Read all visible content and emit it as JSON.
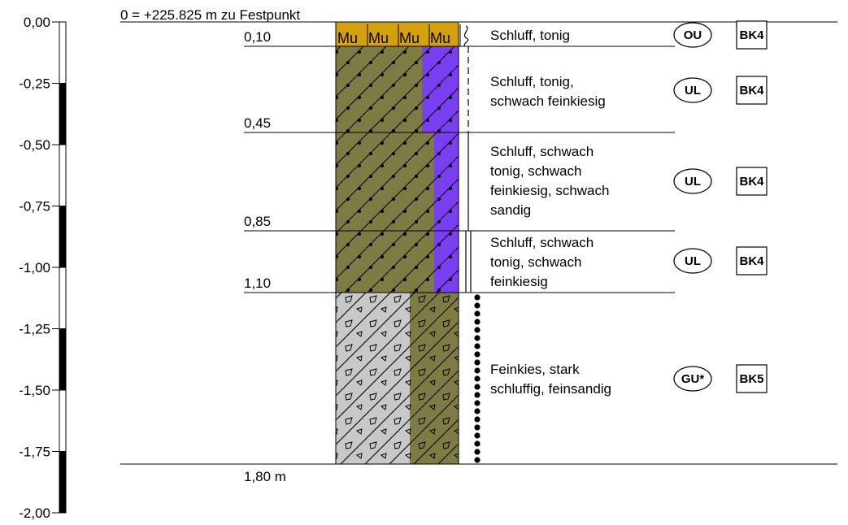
{
  "reference": "0 = +225.825 m zu Festpunkt",
  "scale_ticks": [
    "0,00",
    "-0,25",
    "-0,50",
    "-0,75",
    "-1,00",
    "-1,25",
    "-1,50",
    "-1,75",
    "-2,00"
  ],
  "depth_labels": [
    "0,10",
    "0,45",
    "0,85",
    "1,10"
  ],
  "final_depth": "1,80 m",
  "layers": [
    {
      "lines": [
        "Schluff, tonig"
      ],
      "group": "OU",
      "class": "BK4",
      "bottom": 0.1
    },
    {
      "lines": [
        "Schluff, tonig,",
        "schwach feinkiesig"
      ],
      "group": "UL",
      "class": "BK4",
      "bottom": 0.45
    },
    {
      "lines": [
        "Schluff, schwach",
        "tonig, schwach",
        "feinkiesig, schwach",
        "sandig"
      ],
      "group": "UL",
      "class": "BK4",
      "bottom": 0.85
    },
    {
      "lines": [
        "Schluff, schwach",
        "tonig, schwach",
        "feinkiesig"
      ],
      "group": "UL",
      "class": "BK4",
      "bottom": 1.1
    },
    {
      "lines": [
        "Feinkies, stark",
        "schluffig, feinsandig"
      ],
      "group": "GU*",
      "class": "BK5",
      "bottom": 1.8
    }
  ],
  "topsoil_symbol": "Mu",
  "colors": {
    "topsoil": "#d4a00b",
    "silt": "#7d7c45",
    "accent_violet": "#7b3ff2",
    "gravel": "#c8c8c8"
  }
}
